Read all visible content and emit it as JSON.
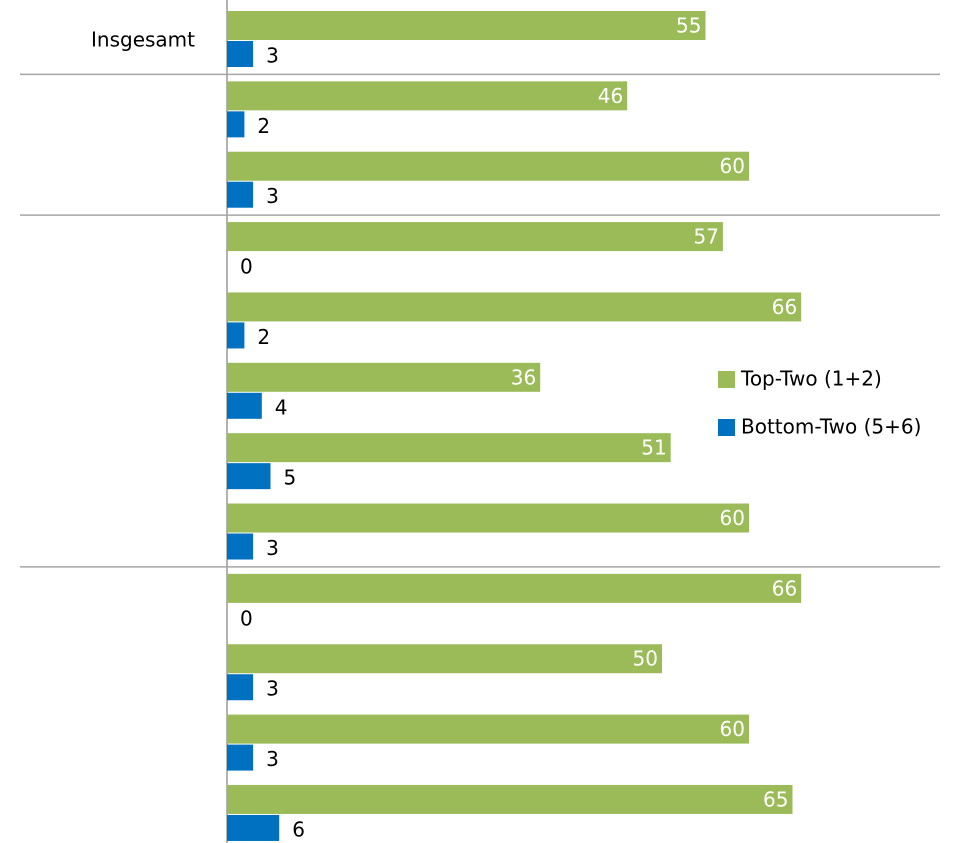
{
  "chart_data": {
    "type": "bar",
    "orientation": "horizontal",
    "categories": [
      "Insgesamt",
      null,
      null,
      null,
      null,
      null,
      null,
      null,
      null,
      null,
      null,
      null
    ],
    "series": [
      {
        "name": "Top-Two (1+2)",
        "color": "#9bbb59",
        "values": [
          55,
          46,
          60,
          57,
          66,
          36,
          51,
          60,
          66,
          50,
          60,
          65
        ]
      },
      {
        "name": "Bottom-Two (5+6)",
        "color": "#0070c0",
        "values": [
          3,
          2,
          3,
          0,
          2,
          4,
          5,
          3,
          0,
          3,
          3,
          6
        ]
      }
    ],
    "legend": "right"
  }
}
